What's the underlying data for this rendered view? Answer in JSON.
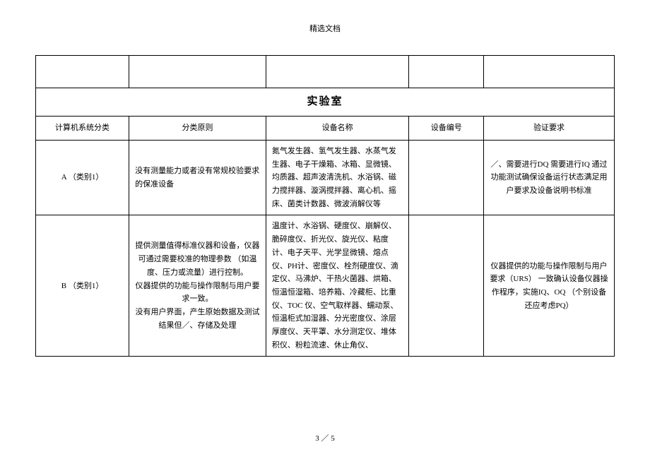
{
  "header": "精选文档",
  "section_title": "实验室",
  "columns": {
    "c1": "计算机系统分类",
    "c2": "分类原则",
    "c3": "设备名称",
    "c4": "设备编号",
    "c5": "验证要求"
  },
  "rows": [
    {
      "category": "A （类别1）",
      "principle": "没有测量能力或者没有常规校验要求 的保准设备",
      "equipment": "氮气发生器、氢气发生器、水蒸气发生器、电子干燥箱、冰箱、显微镜、均质器、超声波清洗机、水浴锅、磁力搅拌器、漩涡搅拌器、离心机、摇床、菌类计数器、微波消解仪等",
      "code": "",
      "requirement": "／、需要进行DQ 需要进行IQ 通过功能测试确保设备运行状态满足用户要求及设备说明书标准"
    },
    {
      "category": "B （类别1）",
      "principle": "提供测量值得标准仪器和设备，仪器可通过需要校准的物理参数 （如温度、压力或流量）进行控制。\n仪器提供的功能与操作限制与用户要求一致。\n没有用户界面，产生原始数据及测试结果但／、存储及处理",
      "equipment": "温度计、水浴锅、硬度仪、崩解仪、脆碎度仪、折光仪、旋光仪、粘度计、电子天平、光学显微镜、熔点仪、PH计、密度仪、栓剂硬度仪、滴定仪、马沸炉、干热火菌器、烘箱、恒温恒湿箱、培养箱、冷藏柜、比重仪、TOC 仪、空气取样器、蠕动泵、恒温柜式加湿器、分光密度仪、涂层厚度仪、天平罩、水分测定仪、堆体积仪、粉粒流速、休止角仪、",
      "code": "",
      "requirement": "仪器提供的功能与操作限制与用户要求（URS） 一致确认设备仪器操作程序，实施IQ、OQ （个别设备还应考虑PQ）"
    }
  ],
  "footer": "3 ／ 5"
}
